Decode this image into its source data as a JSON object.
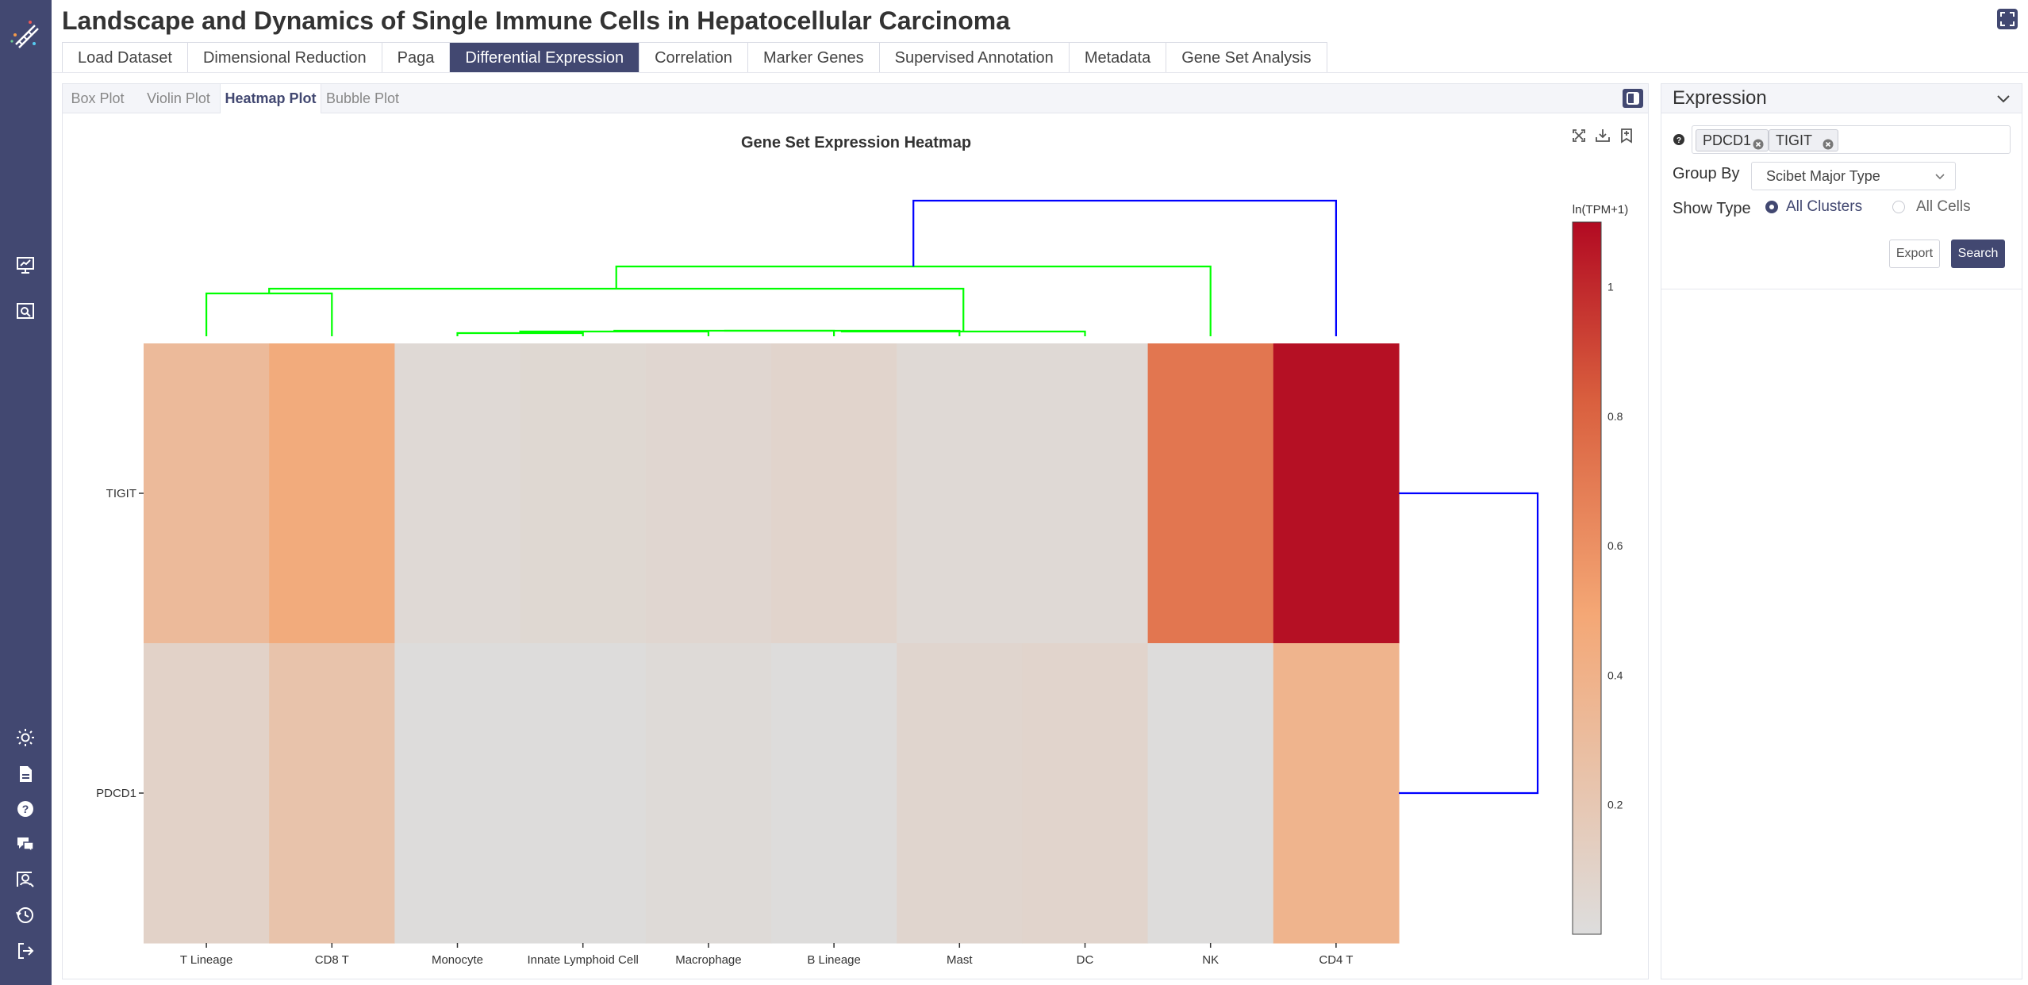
{
  "app": {
    "title": "Landscape and Dynamics of Single Immune Cells in Hepatocellular Carcinoma"
  },
  "main_tabs": [
    {
      "label": "Load Dataset",
      "active": false
    },
    {
      "label": "Dimensional Reduction",
      "active": false
    },
    {
      "label": "Paga",
      "active": false
    },
    {
      "label": "Differential Expression",
      "active": true
    },
    {
      "label": "Correlation",
      "active": false
    },
    {
      "label": "Marker Genes",
      "active": false
    },
    {
      "label": "Supervised Annotation",
      "active": false
    },
    {
      "label": "Metadata",
      "active": false
    },
    {
      "label": "Gene Set Analysis",
      "active": false
    }
  ],
  "sub_tabs": [
    {
      "label": "Box Plot",
      "active": false
    },
    {
      "label": "Violin Plot",
      "active": false
    },
    {
      "label": "Heatmap Plot",
      "active": true
    },
    {
      "label": "Bubble Plot",
      "active": false
    }
  ],
  "sidebar_icons": [
    "app-logo-icon",
    "presentation-chart-icon",
    "search-document-icon",
    "sun-icon",
    "document-icon",
    "help-icon",
    "chat-icon",
    "user-search-icon",
    "history-icon",
    "logout-icon"
  ],
  "colors": {
    "primary": "#424871",
    "dendrogram_gene": "#0000ff",
    "dendrogram_cluster_main": "#0000ff",
    "dendrogram_cluster_sub": "#00ff00"
  },
  "chart_data": {
    "type": "heatmap",
    "title": "Gene Set Expression Heatmap",
    "colorbar_title": "ln(TPM+1)",
    "colorbar_range": [
      0,
      1.1
    ],
    "colorbar_ticks": [
      0.2,
      0.4,
      0.6,
      0.8,
      1
    ],
    "colorscale": [
      [
        0,
        "#dddddd"
      ],
      [
        0.45,
        "#f4a775"
      ],
      [
        0.75,
        "#d95f3e"
      ],
      [
        1,
        "#b20a22"
      ]
    ],
    "x": [
      "T Lineage",
      "CD8 T",
      "Monocyte",
      "Innate Lymphoid Cell",
      "Macrophage",
      "B Lineage",
      "Mast",
      "DC",
      "NK",
      "CD4 T"
    ],
    "y": [
      "TIGIT",
      "PDCD1"
    ],
    "z": [
      [
        0.32,
        0.46,
        0.04,
        0.05,
        0.06,
        0.08,
        0.04,
        0.04,
        0.72,
        1.08
      ],
      [
        0.1,
        0.24,
        0.01,
        0.01,
        0.03,
        0.01,
        0.07,
        0.08,
        0.01,
        0.38
      ]
    ]
  },
  "expression_panel": {
    "title": "Expression",
    "genes": [
      "PDCD1",
      "TIGIT"
    ],
    "group_by_label": "Group By",
    "group_by_value": "Scibet Major Type",
    "show_type_label": "Show Type",
    "show_type_options": [
      {
        "label": "All Clusters",
        "selected": true
      },
      {
        "label": "All Cells",
        "selected": false
      }
    ],
    "export_label": "Export",
    "search_label": "Search"
  }
}
